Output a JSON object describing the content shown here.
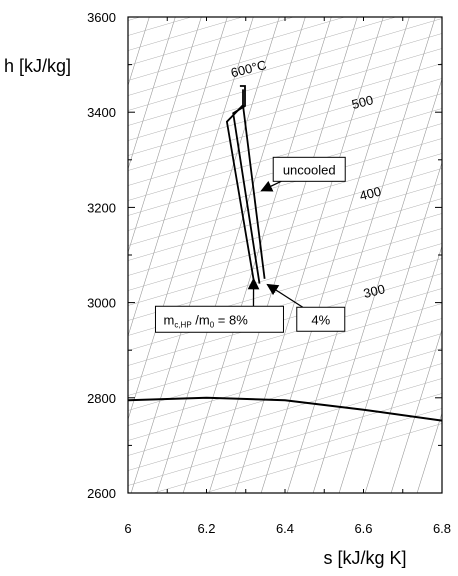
{
  "chart_data": {
    "type": "line",
    "xlabel": "s [kJ/kg K]",
    "ylabel": "h [kJ/kg]",
    "xlim": [
      6,
      6.8
    ],
    "ylim": [
      2600,
      3600
    ],
    "xticks": [
      "6",
      "6.2",
      "6.4",
      "6.6",
      "6.8"
    ],
    "yticks": [
      "2600",
      "2800",
      "3000",
      "3200",
      "3400",
      "3600"
    ],
    "grid": false,
    "isotherm_labels": [
      {
        "text": "600°C",
        "x": 6.31,
        "y": 3482
      },
      {
        "text": "500",
        "x": 6.6,
        "y": 3412
      },
      {
        "text": "400",
        "x": 6.62,
        "y": 3220
      },
      {
        "text": "300",
        "x": 6.63,
        "y": 3015
      }
    ],
    "series": [
      {
        "id": "saturation",
        "x": [
          6.0,
          6.2,
          6.4,
          6.6,
          6.8
        ],
        "y": [
          2795,
          2800,
          2795,
          2775,
          2752
        ]
      },
      {
        "id": "expansion-8pct",
        "x": [
          6.293,
          6.293,
          6.252,
          6.323
        ],
        "y": [
          3448,
          3415,
          3380,
          3033
        ]
      },
      {
        "id": "expansion-uncooled",
        "x": [
          6.293,
          6.348
        ],
        "y": [
          3415,
          3050
        ]
      },
      {
        "id": "expansion-4pct",
        "x": [
          6.285,
          6.298,
          6.298,
          6.268,
          6.335
        ],
        "y": [
          3455,
          3455,
          3413,
          3398,
          3040
        ]
      }
    ],
    "annotations": [
      {
        "id": "uncooled",
        "text": "uncooled",
        "target": [
          6.34,
          3235
        ],
        "box": [
          6.37,
          3280
        ]
      },
      {
        "id": "four",
        "text": "4%",
        "target": [
          6.355,
          3038
        ],
        "box": [
          6.43,
          2965
        ]
      },
      {
        "id": "eight",
        "text_main": "m",
        "text_sub": "c,HP",
        "text_mid": " /m",
        "text_sub2": "0",
        "text_end": " = 8%",
        "target": [
          6.32,
          3050
        ],
        "box": [
          6.07,
          2965
        ]
      }
    ]
  }
}
